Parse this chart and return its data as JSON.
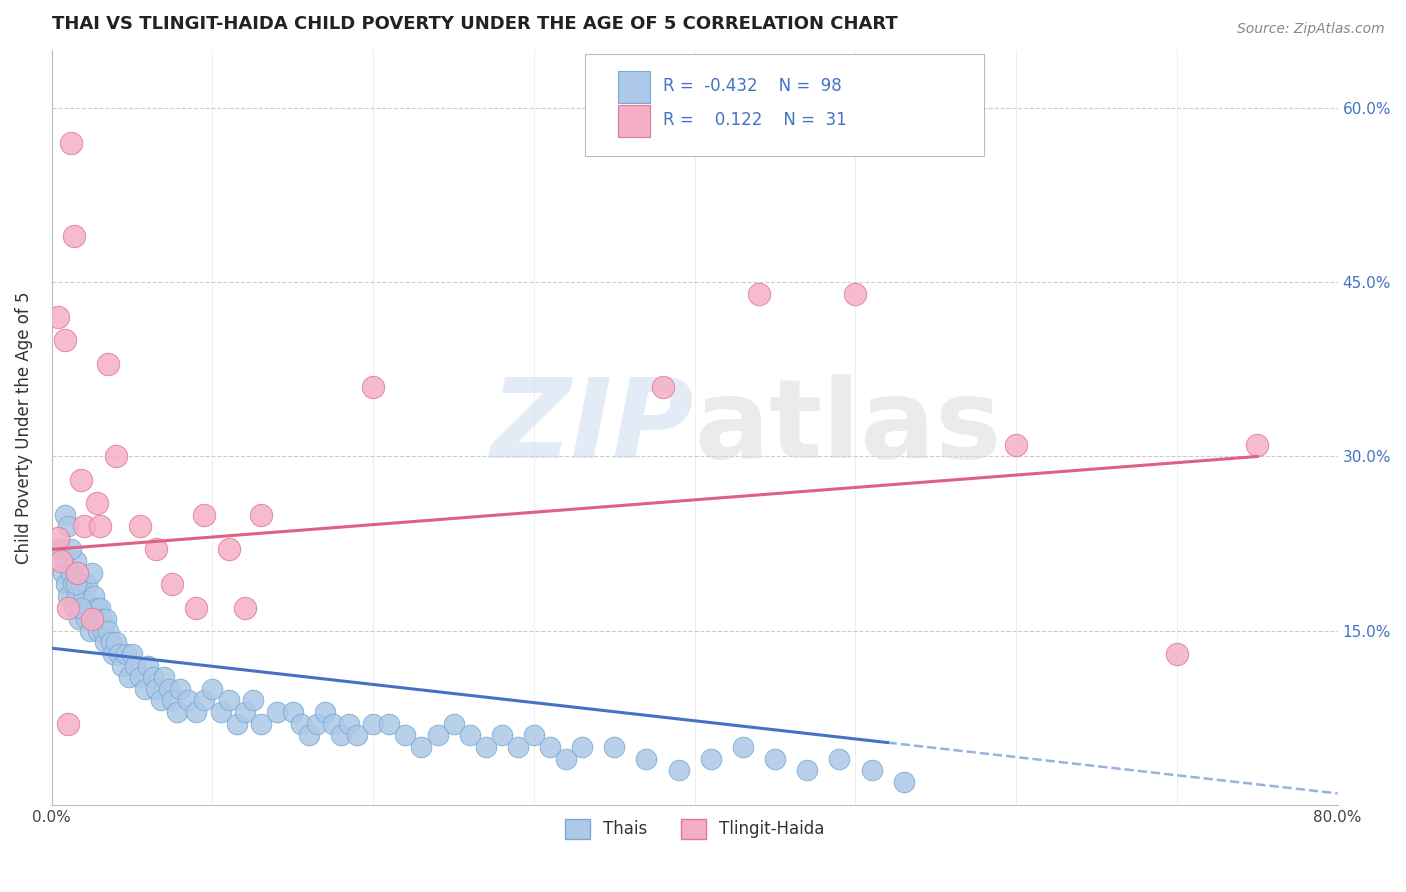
{
  "title": "THAI VS TLINGIT-HAIDA CHILD POVERTY UNDER THE AGE OF 5 CORRELATION CHART",
  "source": "Source: ZipAtlas.com",
  "ylabel": "Child Poverty Under the Age of 5",
  "xmin": 0.0,
  "xmax": 0.8,
  "ymin": 0.0,
  "ymax": 0.65,
  "thai_color": "#adc8e8",
  "tlingit_color": "#f5afc5",
  "thai_edge_color": "#7aaad0",
  "tlingit_edge_color": "#e07898",
  "trend_thai_color": "#4472c4",
  "trend_tlingit_color": "#e06080",
  "legend_text_color": "#4472c4",
  "background_color": "#ffffff",
  "grid_color": "#cccccc",
  "title_fontsize": 13,
  "right_axis_color": "#4472c4",
  "thai_x": [
    0.005,
    0.007,
    0.008,
    0.009,
    0.01,
    0.012,
    0.013,
    0.014,
    0.015,
    0.016,
    0.017,
    0.018,
    0.019,
    0.02,
    0.021,
    0.022,
    0.023,
    0.024,
    0.025,
    0.026,
    0.027,
    0.028,
    0.029,
    0.03,
    0.031,
    0.032,
    0.033,
    0.034,
    0.035,
    0.037,
    0.038,
    0.04,
    0.042,
    0.044,
    0.046,
    0.048,
    0.05,
    0.052,
    0.055,
    0.058,
    0.06,
    0.063,
    0.065,
    0.068,
    0.07,
    0.073,
    0.075,
    0.078,
    0.08,
    0.085,
    0.09,
    0.095,
    0.1,
    0.105,
    0.11,
    0.115,
    0.12,
    0.125,
    0.13,
    0.14,
    0.15,
    0.155,
    0.16,
    0.165,
    0.17,
    0.175,
    0.18,
    0.185,
    0.19,
    0.2,
    0.21,
    0.22,
    0.23,
    0.24,
    0.25,
    0.26,
    0.27,
    0.28,
    0.29,
    0.3,
    0.31,
    0.32,
    0.33,
    0.35,
    0.37,
    0.39,
    0.41,
    0.43,
    0.45,
    0.47,
    0.49,
    0.51,
    0.53,
    0.008,
    0.01,
    0.012,
    0.015,
    0.018
  ],
  "thai_y": [
    0.22,
    0.2,
    0.21,
    0.19,
    0.18,
    0.2,
    0.19,
    0.17,
    0.21,
    0.18,
    0.16,
    0.19,
    0.17,
    0.18,
    0.16,
    0.19,
    0.17,
    0.15,
    0.2,
    0.18,
    0.16,
    0.17,
    0.15,
    0.17,
    0.16,
    0.15,
    0.14,
    0.16,
    0.15,
    0.14,
    0.13,
    0.14,
    0.13,
    0.12,
    0.13,
    0.11,
    0.13,
    0.12,
    0.11,
    0.1,
    0.12,
    0.11,
    0.1,
    0.09,
    0.11,
    0.1,
    0.09,
    0.08,
    0.1,
    0.09,
    0.08,
    0.09,
    0.1,
    0.08,
    0.09,
    0.07,
    0.08,
    0.09,
    0.07,
    0.08,
    0.08,
    0.07,
    0.06,
    0.07,
    0.08,
    0.07,
    0.06,
    0.07,
    0.06,
    0.07,
    0.07,
    0.06,
    0.05,
    0.06,
    0.07,
    0.06,
    0.05,
    0.06,
    0.05,
    0.06,
    0.05,
    0.04,
    0.05,
    0.05,
    0.04,
    0.03,
    0.04,
    0.05,
    0.04,
    0.03,
    0.04,
    0.03,
    0.02,
    0.25,
    0.24,
    0.22,
    0.19,
    0.17
  ],
  "tlingit_x": [
    0.004,
    0.006,
    0.008,
    0.01,
    0.012,
    0.014,
    0.016,
    0.018,
    0.02,
    0.025,
    0.028,
    0.03,
    0.035,
    0.04,
    0.055,
    0.065,
    0.075,
    0.09,
    0.095,
    0.11,
    0.12,
    0.13,
    0.2,
    0.38,
    0.44,
    0.5,
    0.6,
    0.7,
    0.75,
    0.004,
    0.01
  ],
  "tlingit_y": [
    0.23,
    0.21,
    0.4,
    0.17,
    0.57,
    0.49,
    0.2,
    0.28,
    0.24,
    0.16,
    0.26,
    0.24,
    0.38,
    0.3,
    0.24,
    0.22,
    0.19,
    0.17,
    0.25,
    0.22,
    0.17,
    0.25,
    0.36,
    0.36,
    0.44,
    0.44,
    0.31,
    0.13,
    0.31,
    0.42,
    0.07
  ]
}
